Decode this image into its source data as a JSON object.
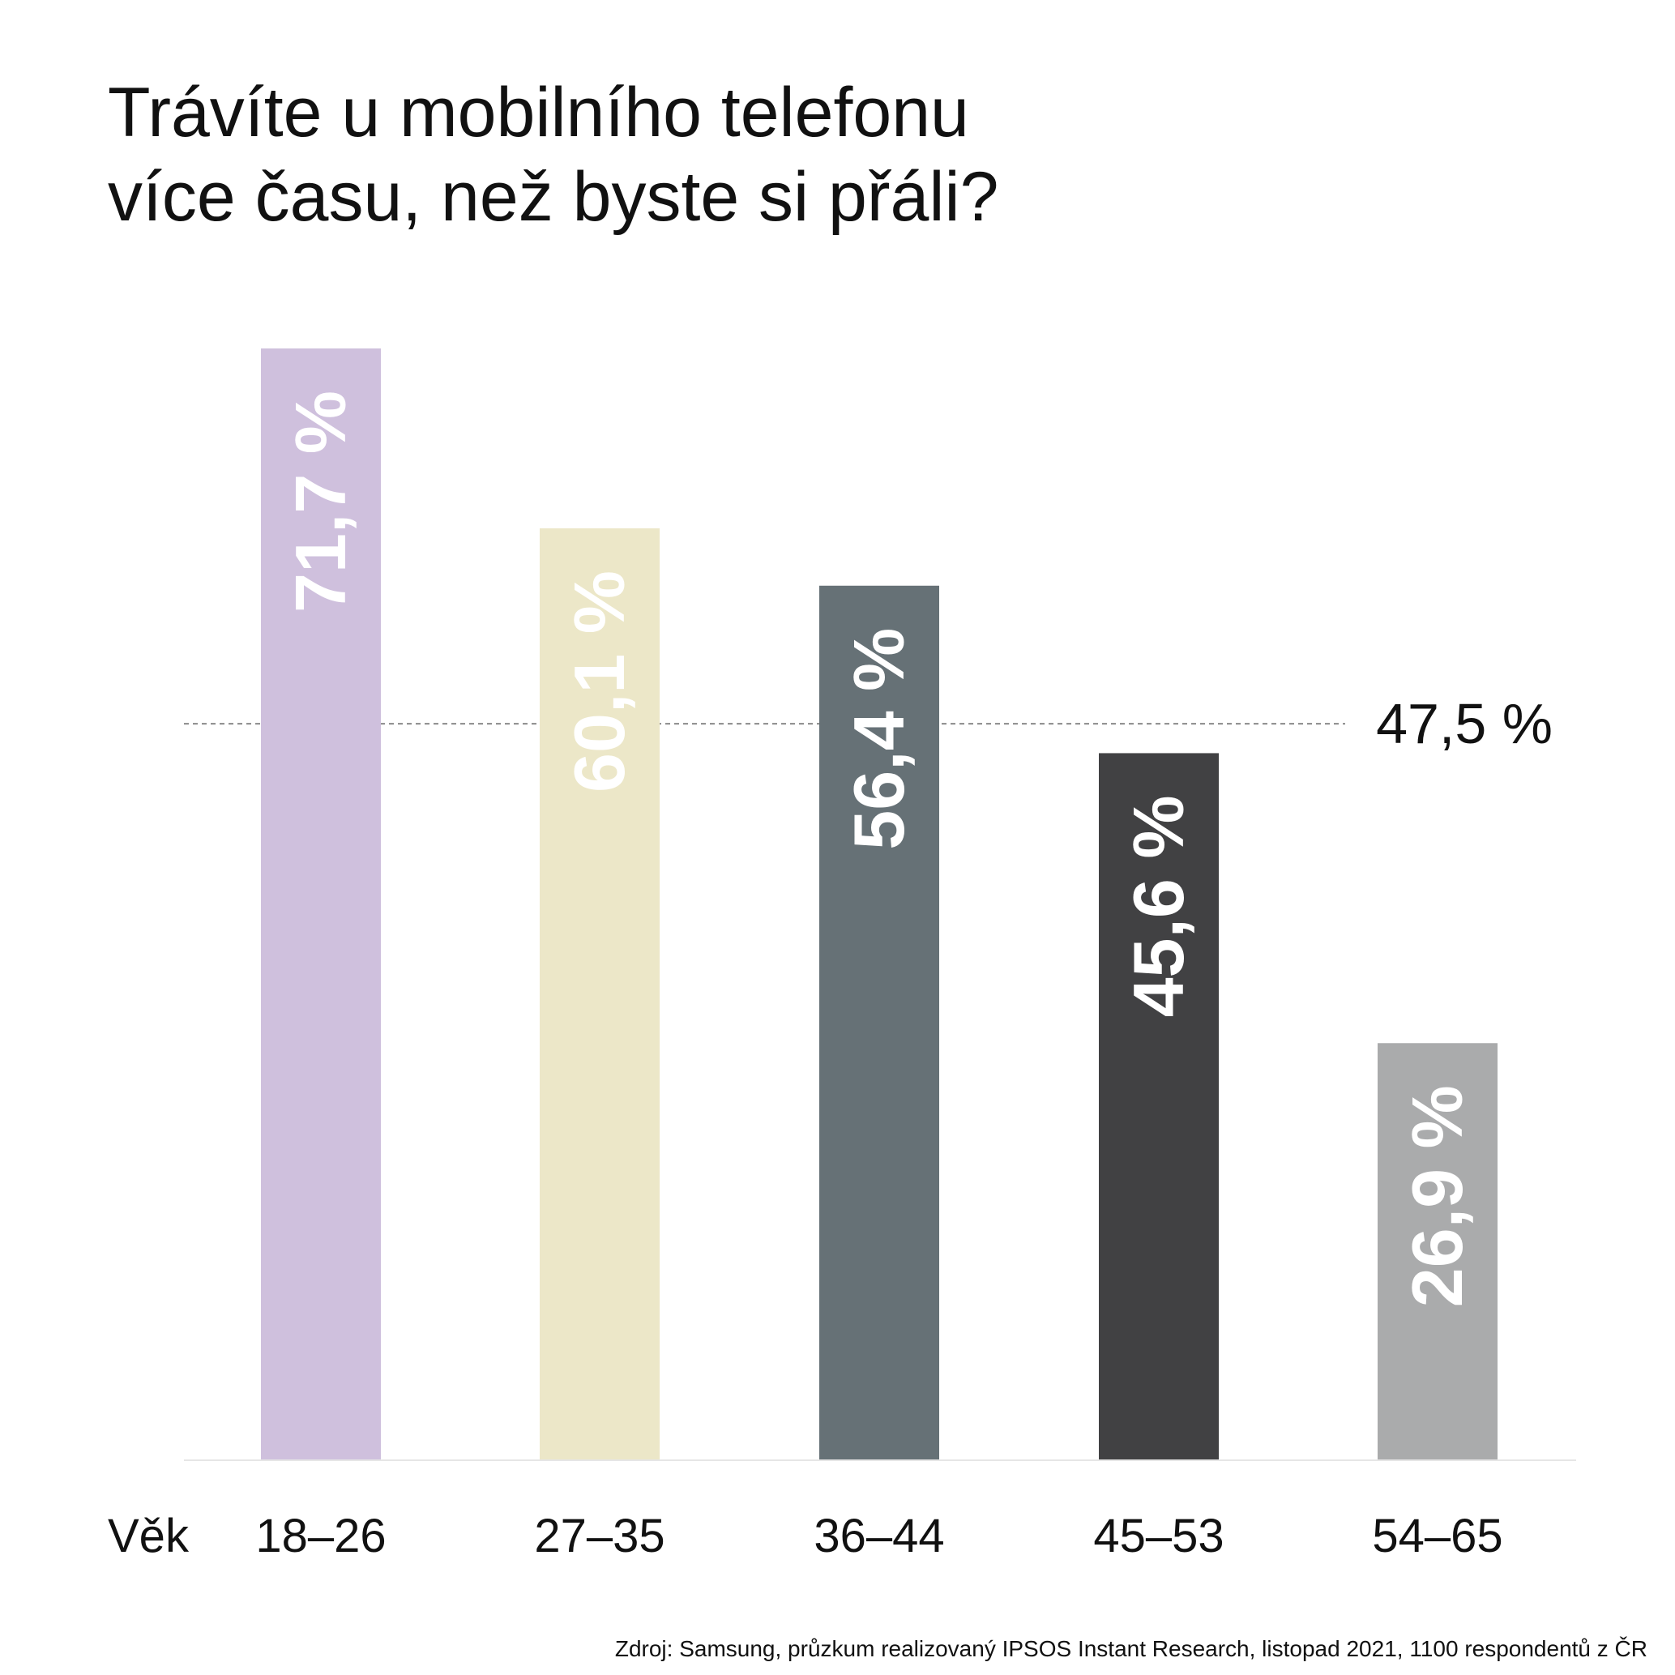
{
  "title_lines": [
    "Trávíte u mobilního telefonu",
    "více času, než byste si přáli?"
  ],
  "axis_label": "Věk",
  "source": "Zdroj: Samsung, průzkum realizovaný IPSOS Instant Research, listopad 2021, 1100 respondentů z ČR",
  "chart_data": {
    "type": "bar",
    "orientation": "vertical",
    "categories": [
      "18–26",
      "27–35",
      "36–44",
      "45–53",
      "54–65"
    ],
    "values": [
      71.7,
      60.1,
      56.4,
      45.6,
      26.9
    ],
    "value_labels": [
      "71,7 %",
      "60,1 %",
      "56,4 %",
      "45,6 %",
      "26,9 %"
    ],
    "colors": [
      "#CFC0DD",
      "#ECE7C8",
      "#667176",
      "#414143",
      "#AAABAC"
    ],
    "ylim": [
      0,
      71.7
    ],
    "reference_line": {
      "value": 47.5,
      "label": "47,5 %",
      "style": "dashed"
    },
    "xlabel": "Věk",
    "ylabel": "",
    "grid": false,
    "legend": "none"
  }
}
